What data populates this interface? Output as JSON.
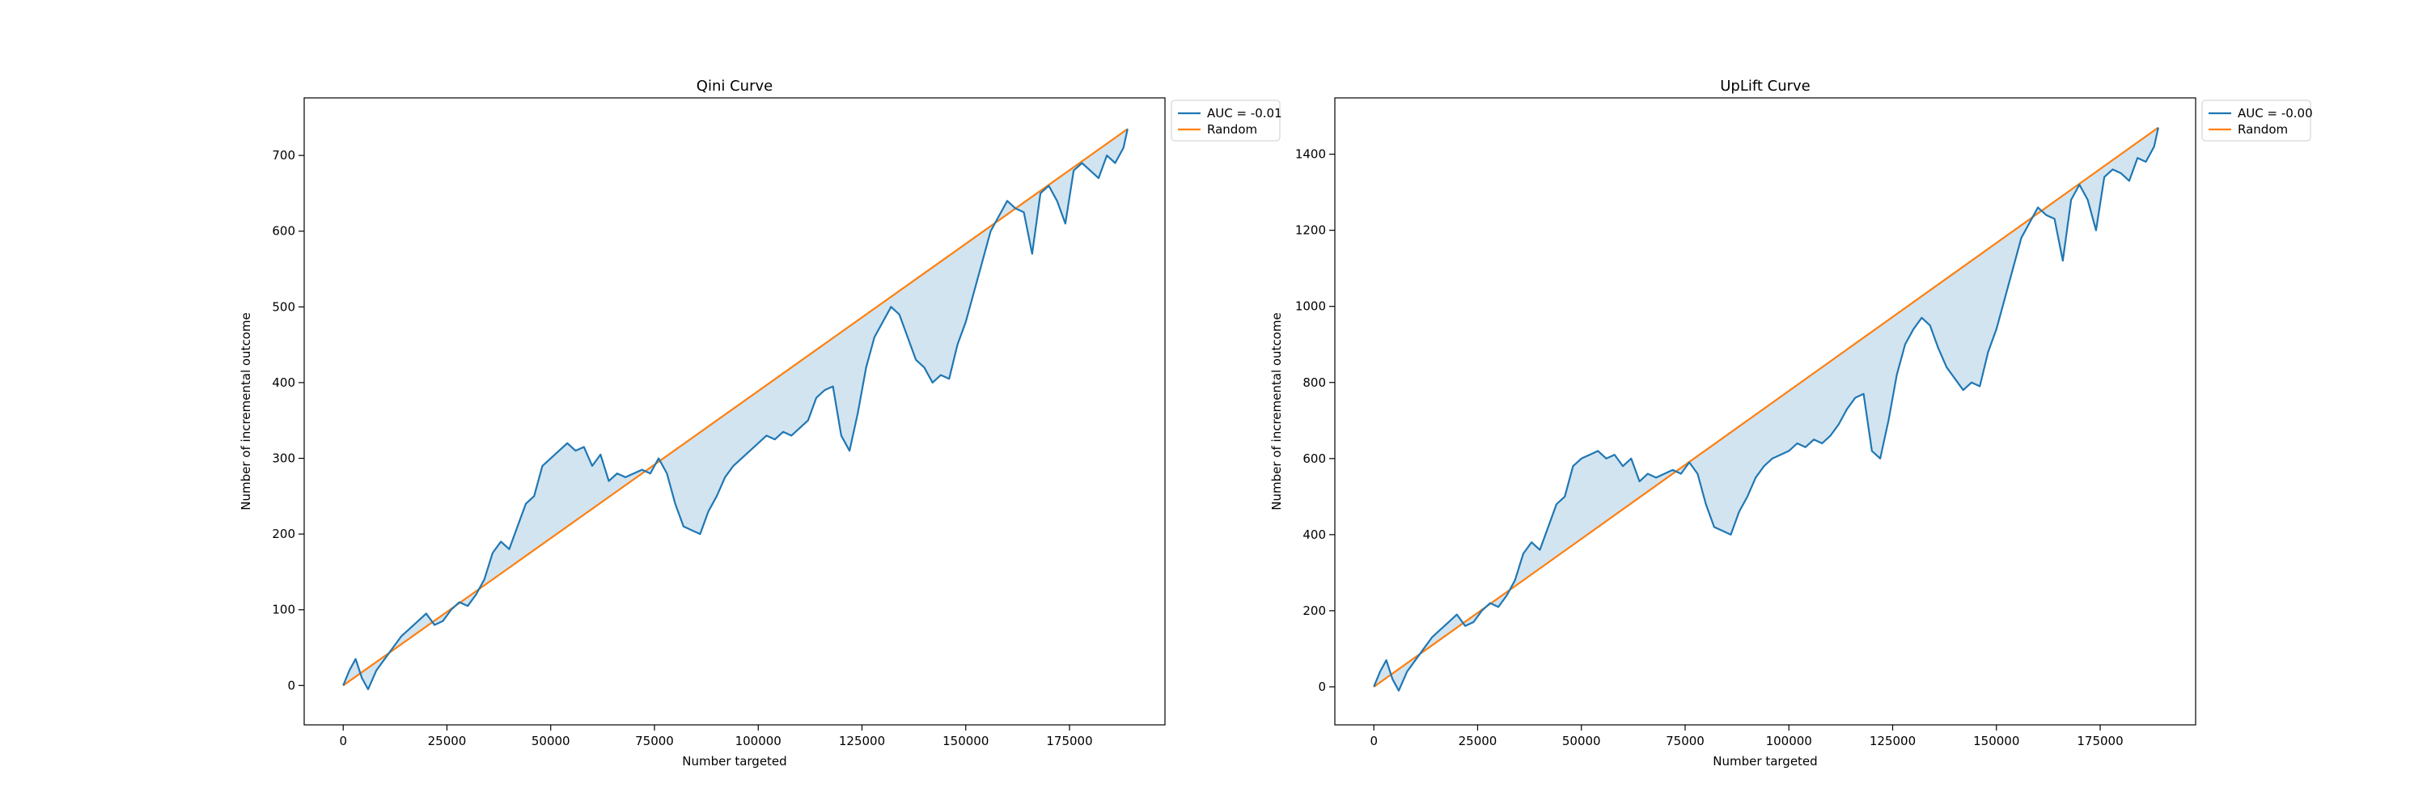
{
  "colors": {
    "curve": "#1f77b4",
    "random": "#ff7f0e",
    "fill": "#1f77b4"
  },
  "chart_data": [
    {
      "type": "line",
      "title": "Qini Curve",
      "xlabel": "Number targeted",
      "ylabel": "Number of incremental outcome",
      "xlim": [
        -9400,
        198000
      ],
      "ylim": [
        -52,
        776
      ],
      "xticks": [
        0,
        25000,
        50000,
        75000,
        100000,
        125000,
        150000,
        175000
      ],
      "yticks": [
        0,
        100,
        200,
        300,
        400,
        500,
        600,
        700
      ],
      "grid": false,
      "legend_position": "outside-top-right",
      "fill_between": true,
      "series": [
        {
          "name": "AUC = -0.01",
          "x": [
            0,
            1500,
            3000,
            4500,
            6000,
            8000,
            10000,
            12000,
            14000,
            16000,
            18000,
            20000,
            22000,
            24000,
            26000,
            28000,
            30000,
            32000,
            34000,
            36000,
            38000,
            40000,
            42000,
            44000,
            46000,
            48000,
            50000,
            52000,
            54000,
            56000,
            58000,
            60000,
            62000,
            64000,
            66000,
            68000,
            70000,
            72000,
            74000,
            76000,
            78000,
            80000,
            82000,
            84000,
            86000,
            88000,
            90000,
            92000,
            94000,
            96000,
            98000,
            100000,
            102000,
            104000,
            106000,
            108000,
            110000,
            112000,
            114000,
            116000,
            118000,
            120000,
            122000,
            124000,
            126000,
            128000,
            130000,
            132000,
            134000,
            136000,
            138000,
            140000,
            142000,
            144000,
            146000,
            148000,
            150000,
            152000,
            154000,
            156000,
            158000,
            160000,
            162000,
            164000,
            166000,
            168000,
            170000,
            172000,
            174000,
            176000,
            178000,
            180000,
            182000,
            184000,
            186000,
            188000,
            189000
          ],
          "y": [
            0,
            20,
            35,
            10,
            -5,
            20,
            35,
            50,
            65,
            75,
            85,
            95,
            80,
            85,
            100,
            110,
            105,
            120,
            140,
            175,
            190,
            180,
            210,
            240,
            250,
            290,
            300,
            310,
            320,
            310,
            315,
            290,
            305,
            270,
            280,
            275,
            280,
            285,
            280,
            300,
            280,
            240,
            210,
            205,
            200,
            230,
            250,
            275,
            290,
            300,
            310,
            320,
            330,
            325,
            335,
            330,
            340,
            350,
            380,
            390,
            395,
            330,
            310,
            360,
            420,
            460,
            480,
            500,
            490,
            460,
            430,
            420,
            400,
            410,
            405,
            450,
            480,
            520,
            560,
            600,
            620,
            640,
            630,
            625,
            570,
            650,
            660,
            640,
            610,
            680,
            690,
            680,
            670,
            700,
            690,
            710,
            735
          ]
        },
        {
          "name": "Random",
          "x": [
            0,
            189000
          ],
          "y": [
            0,
            735
          ]
        }
      ]
    },
    {
      "type": "line",
      "title": "UpLift Curve",
      "xlabel": "Number targeted",
      "ylabel": "Number of incremental outcome",
      "xlim": [
        -9400,
        198000
      ],
      "ylim": [
        -100,
        1548
      ],
      "xticks": [
        0,
        25000,
        50000,
        75000,
        100000,
        125000,
        150000,
        175000
      ],
      "yticks": [
        0,
        200,
        400,
        600,
        800,
        1000,
        1200,
        1400
      ],
      "grid": false,
      "legend_position": "outside-top-right",
      "fill_between": true,
      "series": [
        {
          "name": "AUC = -0.00",
          "x": [
            0,
            1500,
            3000,
            4500,
            6000,
            8000,
            10000,
            12000,
            14000,
            16000,
            18000,
            20000,
            22000,
            24000,
            26000,
            28000,
            30000,
            32000,
            34000,
            36000,
            38000,
            40000,
            42000,
            44000,
            46000,
            48000,
            50000,
            52000,
            54000,
            56000,
            58000,
            60000,
            62000,
            64000,
            66000,
            68000,
            70000,
            72000,
            74000,
            76000,
            78000,
            80000,
            82000,
            84000,
            86000,
            88000,
            90000,
            92000,
            94000,
            96000,
            98000,
            100000,
            102000,
            104000,
            106000,
            108000,
            110000,
            112000,
            114000,
            116000,
            118000,
            120000,
            122000,
            124000,
            126000,
            128000,
            130000,
            132000,
            134000,
            136000,
            138000,
            140000,
            142000,
            144000,
            146000,
            148000,
            150000,
            152000,
            154000,
            156000,
            158000,
            160000,
            162000,
            164000,
            166000,
            168000,
            170000,
            172000,
            174000,
            176000,
            178000,
            180000,
            182000,
            184000,
            186000,
            188000,
            189000
          ],
          "y": [
            0,
            40,
            70,
            20,
            -10,
            40,
            70,
            100,
            130,
            150,
            170,
            190,
            160,
            170,
            200,
            220,
            210,
            240,
            280,
            350,
            380,
            360,
            420,
            480,
            500,
            580,
            600,
            610,
            620,
            600,
            610,
            580,
            600,
            540,
            560,
            550,
            560,
            570,
            560,
            590,
            560,
            480,
            420,
            410,
            400,
            460,
            500,
            550,
            580,
            600,
            610,
            620,
            640,
            630,
            650,
            640,
            660,
            690,
            730,
            760,
            770,
            620,
            600,
            700,
            820,
            900,
            940,
            970,
            950,
            890,
            840,
            810,
            780,
            800,
            790,
            880,
            940,
            1020,
            1100,
            1180,
            1220,
            1260,
            1240,
            1230,
            1120,
            1280,
            1320,
            1280,
            1200,
            1340,
            1360,
            1350,
            1330,
            1390,
            1380,
            1420,
            1470
          ]
        },
        {
          "name": "Random",
          "x": [
            0,
            189000
          ],
          "y": [
            0,
            1470
          ]
        }
      ]
    }
  ]
}
